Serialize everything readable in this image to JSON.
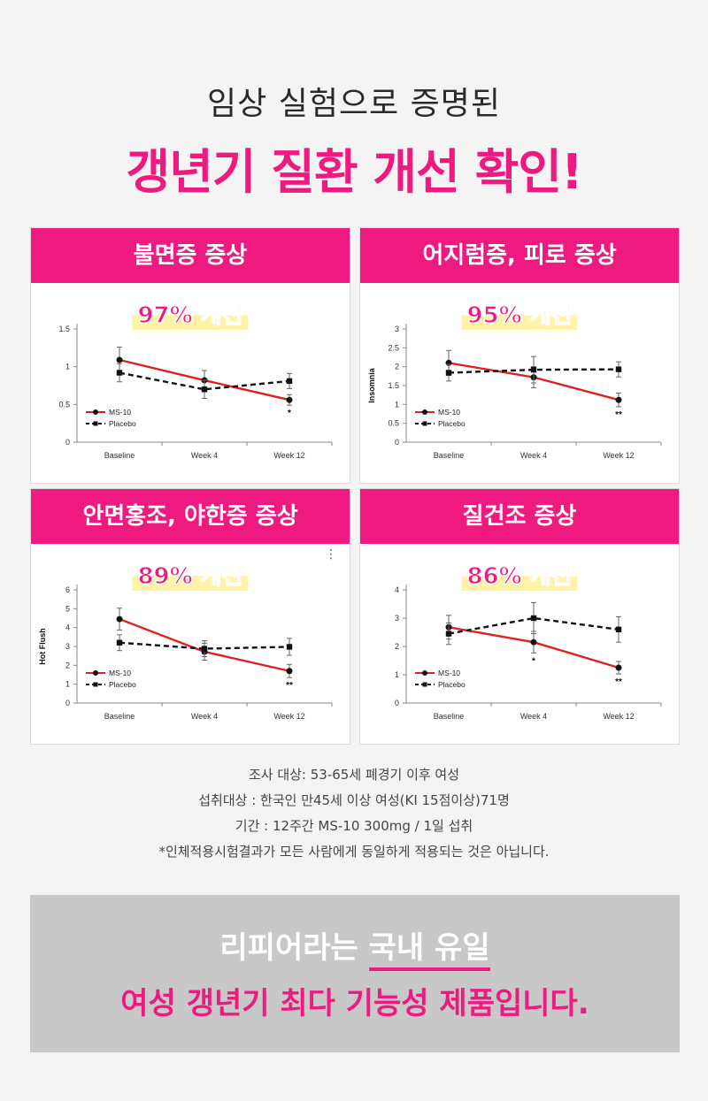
{
  "header": {
    "subtitle": "임상 실험으로 증명된",
    "title": "갱년기 질환 개선 확인!"
  },
  "colors": {
    "accent": "#ee1a7f",
    "ms10": "#e02020",
    "placebo": "#111111",
    "highlight": "#fff3a6"
  },
  "panels": [
    {
      "heading": "불면증 증상",
      "badge": "97% 개선"
    },
    {
      "heading": "어지럼증, 피로 증상",
      "badge": "95% 개선"
    },
    {
      "heading": "안면홍조, 야한증 증상",
      "badge": "89% 개선"
    },
    {
      "heading": "질건조 증상",
      "badge": "86% 개선"
    }
  ],
  "chart_data": [
    {
      "type": "line",
      "categories": [
        "Baseline",
        "Week 4",
        "Week 12"
      ],
      "ylabel": "",
      "ylim": [
        0,
        1.5
      ],
      "yticks": [
        "0",
        "0.5",
        "1",
        "1.5"
      ],
      "series": [
        {
          "name": "MS-10",
          "values": [
            1.09,
            0.82,
            0.56
          ],
          "err": [
            0.17,
            0.13,
            0.07
          ],
          "style": "solid"
        },
        {
          "name": "Placebo",
          "values": [
            0.92,
            0.7,
            0.81
          ],
          "err": [
            0.12,
            0.12,
            0.1
          ],
          "style": "dashed"
        }
      ],
      "annotations": [
        {
          "index": 2,
          "text": "*"
        }
      ]
    },
    {
      "type": "line",
      "categories": [
        "Baseline",
        "Week 4",
        "Week 12"
      ],
      "ylabel": "Insomnia",
      "ylim": [
        0,
        3
      ],
      "yticks": [
        "0",
        "0.5",
        "1",
        "1.5",
        "2",
        "2.5",
        "3"
      ],
      "series": [
        {
          "name": "MS-10",
          "values": [
            2.1,
            1.72,
            1.12
          ],
          "err": [
            0.33,
            0.28,
            0.18
          ],
          "style": "solid"
        },
        {
          "name": "Placebo",
          "values": [
            1.84,
            1.92,
            1.93
          ],
          "err": [
            0.22,
            0.35,
            0.2
          ],
          "style": "dashed"
        }
      ],
      "annotations": [
        {
          "index": 2,
          "text": "**"
        }
      ]
    },
    {
      "type": "line",
      "categories": [
        "Baseline",
        "Week 4",
        "Week 12"
      ],
      "ylabel": "Hot Flush",
      "ylim": [
        0,
        6
      ],
      "yticks": [
        "0",
        "1",
        "2",
        "3",
        "4",
        "5",
        "6"
      ],
      "series": [
        {
          "name": "MS-10",
          "values": [
            4.45,
            2.72,
            1.7
          ],
          "err": [
            0.58,
            0.45,
            0.35
          ],
          "style": "solid"
        },
        {
          "name": "Placebo",
          "values": [
            3.2,
            2.88,
            2.98
          ],
          "err": [
            0.42,
            0.42,
            0.45
          ],
          "style": "dashed"
        }
      ],
      "annotations": [
        {
          "index": 2,
          "text": "**"
        }
      ]
    },
    {
      "type": "line",
      "categories": [
        "Baseline",
        "Week 4",
        "Week 12"
      ],
      "ylabel": "",
      "ylim": [
        0,
        4
      ],
      "yticks": [
        "0",
        "1",
        "2",
        "3",
        "4"
      ],
      "series": [
        {
          "name": "MS-10",
          "values": [
            2.68,
            2.15,
            1.25
          ],
          "err": [
            0.42,
            0.38,
            0.22
          ],
          "style": "solid"
        },
        {
          "name": "Placebo",
          "values": [
            2.45,
            3.0,
            2.6
          ],
          "err": [
            0.38,
            0.55,
            0.45
          ],
          "style": "dashed"
        }
      ],
      "annotations": [
        {
          "index": 1,
          "text": "*"
        },
        {
          "index": 2,
          "text": "**"
        }
      ]
    }
  ],
  "notes": [
    "조사 대상: 53-65세 폐경기 이후 여성",
    "섭취대상 : 한국인 만45세 이상 여성(KI 15점이상)71명",
    "기간 : 12주간 MS-10 300mg / 1일 섭취",
    "*인체적용시험결과가 모든 사람에게 동일하게 적용되는 것은 아닙니다."
  ],
  "banner": {
    "line1_prefix": "리피어라는 ",
    "line1_highlight": "국내 유일",
    "line2": "여성 갱년기 최다 기능성 제품입니다."
  },
  "menu_glyph": "⋮"
}
